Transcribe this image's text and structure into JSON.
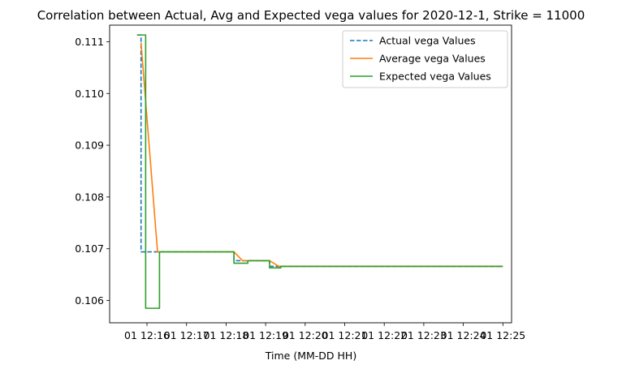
{
  "chart_data": {
    "type": "line",
    "title": "Correlation between Actual, Avg and Expected vega values for 2020-12-1, Strike = 11000",
    "xlabel": "Time (MM-DD HH)",
    "ylabel": "",
    "x_tick_labels": [
      "01 12:16",
      "01 12:17",
      "01 12:18",
      "01 12:19",
      "01 12:20",
      "01 12:21",
      "01 12:22",
      "01 12:23",
      "01 12:24",
      "01 12:25"
    ],
    "y_tick_labels": [
      "0.106",
      "0.107",
      "0.108",
      "0.109",
      "0.110",
      "0.111"
    ],
    "ylim": [
      0.10557,
      0.11132
    ],
    "legend_position": "top-right",
    "colors": {
      "actual": "#1f77b4",
      "average": "#ff7f0e",
      "expected": "#2ca02c"
    },
    "series": [
      {
        "name": "Actual vega Values",
        "style": "dashed",
        "color": "#1f77b4",
        "points": [
          [
            "12:15:45",
            0.11113
          ],
          [
            "12:15:51",
            0.11113
          ],
          [
            "12:15:51",
            0.10694
          ],
          [
            "12:16:22",
            0.10694
          ],
          [
            "12:16:22",
            0.10694
          ],
          [
            "12:18:12",
            0.10694
          ],
          [
            "12:18:12",
            0.10677
          ],
          [
            "12:19:06",
            0.10677
          ],
          [
            "12:19:06",
            0.10666
          ],
          [
            "12:25:00",
            0.10666
          ]
        ]
      },
      {
        "name": "Average vega Values",
        "style": "solid",
        "color": "#ff7f0e",
        "points": [
          [
            "12:15:51",
            0.11098
          ],
          [
            "12:16:16",
            0.10694
          ],
          [
            "12:18:12",
            0.10694
          ],
          [
            "12:18:25",
            0.10677
          ],
          [
            "12:19:06",
            0.10677
          ],
          [
            "12:19:20",
            0.10666
          ],
          [
            "12:25:00",
            0.10666
          ]
        ]
      },
      {
        "name": "Expected vega Values",
        "style": "solid",
        "color": "#2ca02c",
        "points": [
          [
            "12:15:45",
            0.11113
          ],
          [
            "12:15:58",
            0.11113
          ],
          [
            "12:15:58",
            0.10585
          ],
          [
            "12:16:19",
            0.10585
          ],
          [
            "12:16:19",
            0.10694
          ],
          [
            "12:18:12",
            0.10694
          ],
          [
            "12:18:12",
            0.10672
          ],
          [
            "12:18:33",
            0.10672
          ],
          [
            "12:18:33",
            0.10677
          ],
          [
            "12:19:06",
            0.10677
          ],
          [
            "12:19:06",
            0.10663
          ],
          [
            "12:19:23",
            0.10663
          ],
          [
            "12:19:23",
            0.10666
          ],
          [
            "12:25:00",
            0.10666
          ]
        ]
      }
    ]
  }
}
